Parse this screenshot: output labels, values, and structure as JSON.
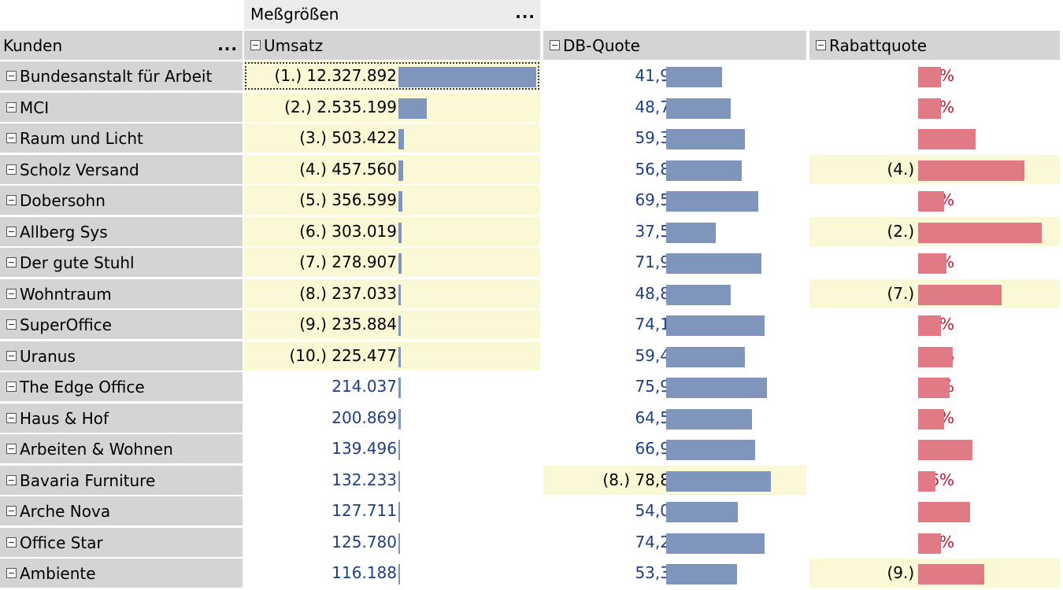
{
  "header": {
    "measures_label": "Meßgrößen",
    "dimension_label": "Kunden",
    "menu_dots": "...",
    "columns": [
      "Umsatz",
      "DB-Quote",
      "Rabattquote"
    ]
  },
  "colors": {
    "blue_value": "#1e3f86",
    "red_value": "#c8102e",
    "blue_bar": "#7f95bb",
    "red_bar": "#e07b86",
    "highlight": "#fbf8d5"
  },
  "rows": [
    {
      "name": "Bundesanstalt für Arbeit",
      "umsatz": "12.327.892",
      "umsatz_rank": "(1.)",
      "umsatz_share": 1.0,
      "db": "41,9%",
      "db_rank": "",
      "db_fraction": 0.419,
      "rabatt": "8%",
      "rabatt_rank": "",
      "rabatt_fraction": 0.08
    },
    {
      "name": "MCI",
      "umsatz": "2.535.199",
      "umsatz_rank": "(2.)",
      "umsatz_share": 0.206,
      "db": "48,7%",
      "db_rank": "",
      "db_fraction": 0.487,
      "rabatt": "8%",
      "rabatt_rank": "",
      "rabatt_fraction": 0.08
    },
    {
      "name": "Raum und Licht",
      "umsatz": "503.422",
      "umsatz_rank": "(3.)",
      "umsatz_share": 0.041,
      "db": "59,3%",
      "db_rank": "",
      "db_fraction": 0.593,
      "rabatt": "20%",
      "rabatt_rank": "",
      "rabatt_fraction": 0.2
    },
    {
      "name": "Scholz Versand",
      "umsatz": "457.560",
      "umsatz_rank": "(4.)",
      "umsatz_share": 0.037,
      "db": "56,8%",
      "db_rank": "",
      "db_fraction": 0.568,
      "rabatt": "37%",
      "rabatt_rank": "(4.)",
      "rabatt_fraction": 0.37
    },
    {
      "name": "Dobersohn",
      "umsatz": "356.599",
      "umsatz_rank": "(5.)",
      "umsatz_share": 0.029,
      "db": "69,5%",
      "db_rank": "",
      "db_fraction": 0.695,
      "rabatt": "9%",
      "rabatt_rank": "",
      "rabatt_fraction": 0.09
    },
    {
      "name": "Allberg Sys",
      "umsatz": "303.019",
      "umsatz_rank": "(6.)",
      "umsatz_share": 0.025,
      "db": "37,5%",
      "db_rank": "",
      "db_fraction": 0.375,
      "rabatt": "43%",
      "rabatt_rank": "(2.)",
      "rabatt_fraction": 0.43
    },
    {
      "name": "Der gute Stuhl",
      "umsatz": "278.907",
      "umsatz_rank": "(7.)",
      "umsatz_share": 0.023,
      "db": "71,9%",
      "db_rank": "",
      "db_fraction": 0.719,
      "rabatt": "10%",
      "rabatt_rank": "",
      "rabatt_fraction": 0.1
    },
    {
      "name": "Wohntraum",
      "umsatz": "237.033",
      "umsatz_rank": "(8.)",
      "umsatz_share": 0.019,
      "db": "48,8%",
      "db_rank": "",
      "db_fraction": 0.488,
      "rabatt": "29%",
      "rabatt_rank": "(7.)",
      "rabatt_fraction": 0.29
    },
    {
      "name": "SuperOffice",
      "umsatz": "235.884",
      "umsatz_rank": "(9.)",
      "umsatz_share": 0.019,
      "db": "74,1%",
      "db_rank": "",
      "db_fraction": 0.741,
      "rabatt": "8%",
      "rabatt_rank": "",
      "rabatt_fraction": 0.08
    },
    {
      "name": "Uranus",
      "umsatz": "225.477",
      "umsatz_rank": "(10.)",
      "umsatz_share": 0.018,
      "db": "59,4%",
      "db_rank": "",
      "db_fraction": 0.594,
      "rabatt": "12%",
      "rabatt_rank": "",
      "rabatt_fraction": 0.12
    },
    {
      "name": "The Edge Office",
      "umsatz": "214.037",
      "umsatz_rank": "",
      "umsatz_share": 0.017,
      "db": "75,9%",
      "db_rank": "",
      "db_fraction": 0.759,
      "rabatt": "11%",
      "rabatt_rank": "",
      "rabatt_fraction": 0.11
    },
    {
      "name": "Haus & Hof",
      "umsatz": "200.869",
      "umsatz_rank": "",
      "umsatz_share": 0.016,
      "db": "64,5%",
      "db_rank": "",
      "db_fraction": 0.645,
      "rabatt": "9%",
      "rabatt_rank": "",
      "rabatt_fraction": 0.09
    },
    {
      "name": "Arbeiten & Wohnen",
      "umsatz": "139.496",
      "umsatz_rank": "",
      "umsatz_share": 0.011,
      "db": "66,9%",
      "db_rank": "",
      "db_fraction": 0.669,
      "rabatt": "19%",
      "rabatt_rank": "",
      "rabatt_fraction": 0.19
    },
    {
      "name": "Bavaria Furniture",
      "umsatz": "132.233",
      "umsatz_rank": "",
      "umsatz_share": 0.011,
      "db": "78,8%",
      "db_rank": "(8.)",
      "db_fraction": 0.788,
      "rabatt": "6%",
      "rabatt_rank": "",
      "rabatt_fraction": 0.06
    },
    {
      "name": "Arche Nova",
      "umsatz": "127.711",
      "umsatz_rank": "",
      "umsatz_share": 0.01,
      "db": "54,0%",
      "db_rank": "",
      "db_fraction": 0.54,
      "rabatt": "18%",
      "rabatt_rank": "",
      "rabatt_fraction": 0.18
    },
    {
      "name": "Office Star",
      "umsatz": "125.780",
      "umsatz_rank": "",
      "umsatz_share": 0.01,
      "db": "74,2%",
      "db_rank": "",
      "db_fraction": 0.742,
      "rabatt": "8%",
      "rabatt_rank": "",
      "rabatt_fraction": 0.08
    },
    {
      "name": "Ambiente",
      "umsatz": "116.188",
      "umsatz_rank": "",
      "umsatz_share": 0.009,
      "db": "53,3%",
      "db_rank": "",
      "db_fraction": 0.533,
      "rabatt": "23%",
      "rabatt_rank": "(9.)",
      "rabatt_fraction": 0.23
    }
  ]
}
